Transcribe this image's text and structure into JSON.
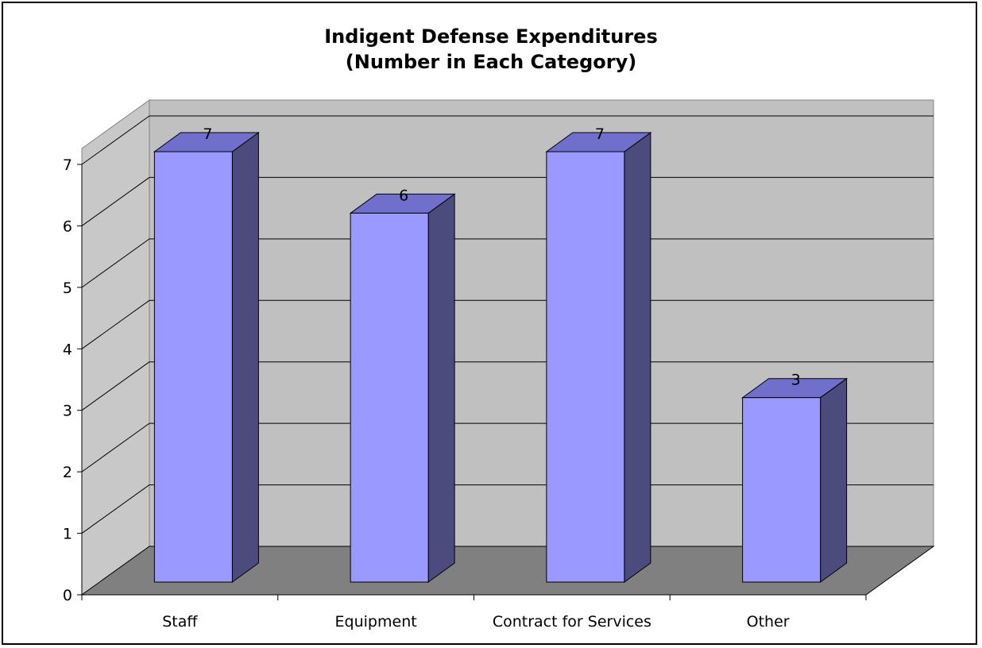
{
  "chart_data": {
    "type": "bar",
    "title_line1": "Indigent Defense Expenditures",
    "title_line2": "(Number in Each Category)",
    "categories": [
      "Staff",
      "Equipment",
      "Contract for Services",
      "Other"
    ],
    "values": [
      7,
      6,
      7,
      3
    ],
    "xlabel": "",
    "ylabel": "",
    "ylim": [
      0,
      7
    ],
    "yticks": [
      0,
      1,
      2,
      3,
      4,
      5,
      6,
      7
    ],
    "grid": true,
    "legend": "none",
    "colors": {
      "bar_front": "#9999FF",
      "bar_top": "#7070CC",
      "bar_side": "#4B4B7E",
      "wall_back": "#C0C0C0",
      "wall_side": "#C8C8C8",
      "floor": "#808080"
    }
  }
}
